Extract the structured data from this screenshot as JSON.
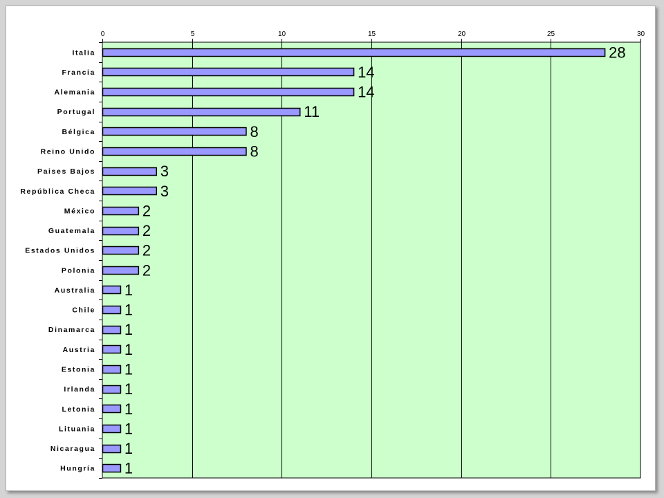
{
  "chart_data": {
    "type": "bar",
    "orientation": "horizontal",
    "title": "",
    "xlabel": "",
    "ylabel": "",
    "xlim": [
      0,
      30
    ],
    "x_ticks": [
      0,
      5,
      10,
      15,
      20,
      25,
      30
    ],
    "x_axis_position": "top",
    "grid": true,
    "legend": "none",
    "colors": {
      "plot_background": "#ccffcc",
      "bar_fill": "#9999ff",
      "bar_stroke": "#000000",
      "gridline": "#000000"
    },
    "categories": [
      "Italia",
      "Francia",
      "Alemania",
      "Portugal",
      "Bélgica",
      "Reino Unido",
      "Paises Bajos",
      "República Checa",
      "México",
      "Guatemala",
      "Estados Unidos",
      "Polonia",
      "Australia",
      "Chile",
      "Dinamarca",
      "Austria",
      "Estonia",
      "Irlanda",
      "Letonia",
      "Lituania",
      "Nicaragua",
      "Hungría"
    ],
    "values": [
      28,
      14,
      14,
      11,
      8,
      8,
      3,
      3,
      2,
      2,
      2,
      2,
      1,
      1,
      1,
      1,
      1,
      1,
      1,
      1,
      1,
      1
    ],
    "data_labels": [
      "28",
      "14",
      "14",
      "11",
      "8",
      "8",
      "3",
      "3",
      "2",
      "2",
      "2",
      "2",
      "1",
      "1",
      "1",
      "1",
      "1",
      "1",
      "1",
      "1",
      "1",
      "1"
    ]
  }
}
